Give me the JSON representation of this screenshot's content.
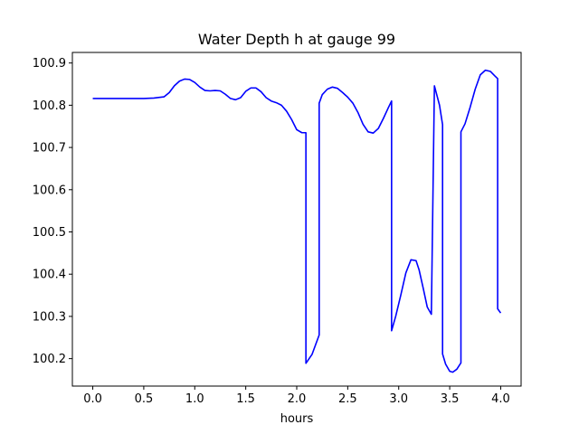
{
  "chart_data": {
    "type": "line",
    "title": "Water Depth h at gauge 99",
    "xlabel": "hours",
    "ylabel": "",
    "xlim": [
      -0.2,
      4.2
    ],
    "ylim": [
      100.135,
      100.925
    ],
    "grid": false,
    "legend": "none",
    "x_ticks": [
      0.0,
      0.5,
      1.0,
      1.5,
      2.0,
      2.5,
      3.0,
      3.5,
      4.0
    ],
    "x_tick_labels": [
      "0.0",
      "0.5",
      "1.0",
      "1.5",
      "2.0",
      "2.5",
      "3.0",
      "3.5",
      "4.0"
    ],
    "y_ticks": [
      100.2,
      100.3,
      100.4,
      100.5,
      100.6,
      100.7,
      100.8,
      100.9
    ],
    "y_tick_labels": [
      "100.2",
      "100.3",
      "100.4",
      "100.5",
      "100.6",
      "100.7",
      "100.8",
      "100.9"
    ],
    "series": [
      {
        "color": "#0000ff",
        "x": [
          0.0,
          0.25,
          0.5,
          0.6,
          0.7,
          0.75,
          0.8,
          0.85,
          0.9,
          0.95,
          1.0,
          1.05,
          1.1,
          1.15,
          1.2,
          1.25,
          1.3,
          1.35,
          1.4,
          1.45,
          1.5,
          1.55,
          1.6,
          1.65,
          1.7,
          1.75,
          1.8,
          1.85,
          1.9,
          1.95,
          2.0,
          2.05,
          2.09,
          2.09,
          2.15,
          2.22,
          2.22,
          2.25,
          2.3,
          2.35,
          2.4,
          2.45,
          2.5,
          2.55,
          2.6,
          2.65,
          2.7,
          2.75,
          2.8,
          2.85,
          2.9,
          2.93,
          2.93,
          2.97,
          3.02,
          3.07,
          3.12,
          3.17,
          3.2,
          3.24,
          3.28,
          3.32,
          3.35,
          3.35,
          3.4,
          3.43,
          3.43,
          3.46,
          3.5,
          3.53,
          3.57,
          3.61,
          3.61,
          3.65,
          3.7,
          3.75,
          3.8,
          3.85,
          3.9,
          3.94,
          3.97,
          3.97,
          4.0
        ],
        "y": [
          100.816,
          100.816,
          100.816,
          100.817,
          100.82,
          100.83,
          100.846,
          100.857,
          100.862,
          100.861,
          100.854,
          100.843,
          100.835,
          100.834,
          100.835,
          100.834,
          100.826,
          100.816,
          100.813,
          100.818,
          100.833,
          100.841,
          100.841,
          100.832,
          100.818,
          100.81,
          100.806,
          100.8,
          100.786,
          100.766,
          100.742,
          100.735,
          100.735,
          100.189,
          100.21,
          100.256,
          100.805,
          100.825,
          100.838,
          100.843,
          100.84,
          100.83,
          100.819,
          100.805,
          100.783,
          100.755,
          100.737,
          100.734,
          100.745,
          100.769,
          100.795,
          100.81,
          100.266,
          100.3,
          100.35,
          100.403,
          100.434,
          100.432,
          100.41,
          100.367,
          100.322,
          100.305,
          100.846,
          100.846,
          100.8,
          100.754,
          100.211,
          100.187,
          100.17,
          100.168,
          100.175,
          100.19,
          100.737,
          100.756,
          100.795,
          100.838,
          100.872,
          100.883,
          100.88,
          100.87,
          100.863,
          100.318,
          100.308
        ]
      }
    ]
  }
}
